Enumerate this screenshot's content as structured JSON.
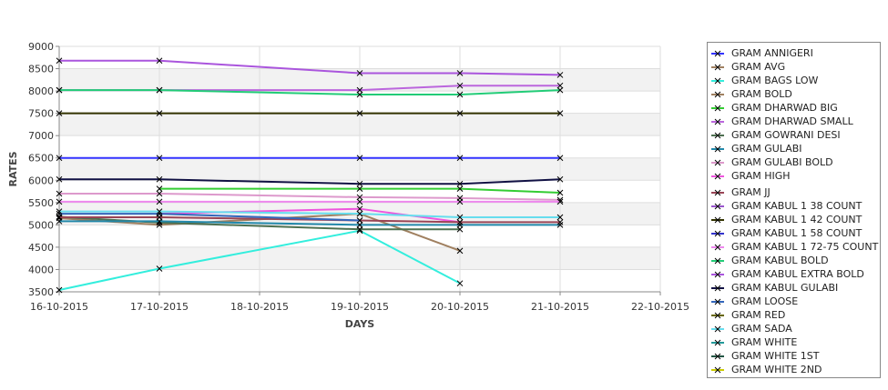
{
  "chart_data": {
    "type": "line",
    "title": "",
    "xlabel": "DAYS",
    "ylabel": "RATES",
    "x_ticks": [
      "16-10-2015",
      "17-10-2015",
      "18-10-2015",
      "19-10-2015",
      "20-10-2015",
      "21-10-2015",
      "22-10-2015"
    ],
    "y_ticks": [
      "3500",
      "4000",
      "4500",
      "5000",
      "5500",
      "6000",
      "6500",
      "7000",
      "7500",
      "8000",
      "8500",
      "9000"
    ],
    "ylim": [
      3500,
      9000
    ],
    "grid": true,
    "legend_position": "right",
    "series": [
      {
        "name": "GRAM ANNIGERI",
        "color": "#3333ff",
        "values": [
          6500,
          6500,
          null,
          6500,
          6500,
          6500
        ]
      },
      {
        "name": "GRAM AVG",
        "color": "#a08060",
        "values": [
          null,
          null,
          null,
          null,
          null,
          null
        ]
      },
      {
        "name": "GRAM BAGS LOW",
        "color": "#33eedd",
        "values": [
          3540,
          4020,
          null,
          4870,
          3690,
          null
        ]
      },
      {
        "name": "GRAM BOLD",
        "color": "#a08060",
        "values": [
          5150,
          5000,
          null,
          5250,
          4420,
          null
        ]
      },
      {
        "name": "GRAM DHARWAD BIG",
        "color": "#33cc33",
        "values": [
          null,
          5810,
          null,
          5810,
          5810,
          5720
        ]
      },
      {
        "name": "GRAM DHARWAD SMALL",
        "color": "#bb66dd",
        "values": [
          8020,
          8020,
          null,
          8020,
          8120,
          8120
        ]
      },
      {
        "name": "GRAM GOWRANI DESI",
        "color": "#4d7050",
        "values": [
          5180,
          5050,
          null,
          4900,
          4900,
          null
        ]
      },
      {
        "name": "GRAM GULABI",
        "color": "#2288aa",
        "values": [
          5080,
          5080,
          null,
          5000,
          5000,
          5000
        ]
      },
      {
        "name": "GRAM GULABI BOLD",
        "color": "#dd99cc",
        "values": [
          5700,
          5700,
          null,
          5620,
          5600,
          5560
        ]
      },
      {
        "name": "GRAM HIGH",
        "color": "#ee55dd",
        "values": [
          null,
          5250,
          null,
          5360,
          5060,
          null
        ]
      },
      {
        "name": "GRAM JJ",
        "color": "#994455",
        "values": [
          5170,
          5170,
          null,
          5100,
          5060,
          5060
        ]
      },
      {
        "name": "GRAM KABUL 1 38 COUNT",
        "color": "#9955cc",
        "values": [
          null,
          null,
          null,
          null,
          null,
          null
        ]
      },
      {
        "name": "GRAM KABUL 1 42 COUNT",
        "color": "#333300",
        "values": [
          7500,
          7500,
          null,
          7500,
          7500,
          7500
        ]
      },
      {
        "name": "GRAM KABUL 1 58 COUNT",
        "color": "#3333cc",
        "values": [
          null,
          null,
          null,
          null,
          null,
          null
        ]
      },
      {
        "name": "GRAM KABUL 1 72-75 COUNT",
        "color": "#ee88ee",
        "values": [
          5520,
          5520,
          null,
          5520,
          5520,
          5520
        ]
      },
      {
        "name": "GRAM KABUL BOLD",
        "color": "#22cc77",
        "values": [
          8020,
          8020,
          null,
          7920,
          7920,
          8020
        ]
      },
      {
        "name": "GRAM KABUL EXTRA BOLD",
        "color": "#aa55dd",
        "values": [
          8680,
          8680,
          null,
          8400,
          8400,
          8360
        ]
      },
      {
        "name": "GRAM KABUL GULABI",
        "color": "#111144",
        "values": [
          6020,
          6020,
          null,
          5920,
          5920,
          6020
        ]
      },
      {
        "name": "GRAM LOOSE",
        "color": "#3366bb",
        "values": [
          5250,
          5250,
          null,
          5100,
          null,
          null
        ]
      },
      {
        "name": "GRAM RED",
        "color": "#666600",
        "values": [
          null,
          null,
          null,
          null,
          null,
          null
        ]
      },
      {
        "name": "GRAM SADA",
        "color": "#66ddee",
        "values": [
          5300,
          5300,
          null,
          5250,
          5170,
          5170
        ]
      },
      {
        "name": "GRAM WHITE",
        "color": "#229999",
        "values": [
          null,
          null,
          null,
          null,
          null,
          null
        ]
      },
      {
        "name": "GRAM WHITE 1ST",
        "color": "#225544",
        "values": [
          null,
          null,
          null,
          null,
          null,
          null
        ]
      },
      {
        "name": "GRAM WHITE 2ND",
        "color": "#cccc00",
        "values": [
          null,
          null,
          null,
          null,
          null,
          null
        ]
      }
    ]
  }
}
